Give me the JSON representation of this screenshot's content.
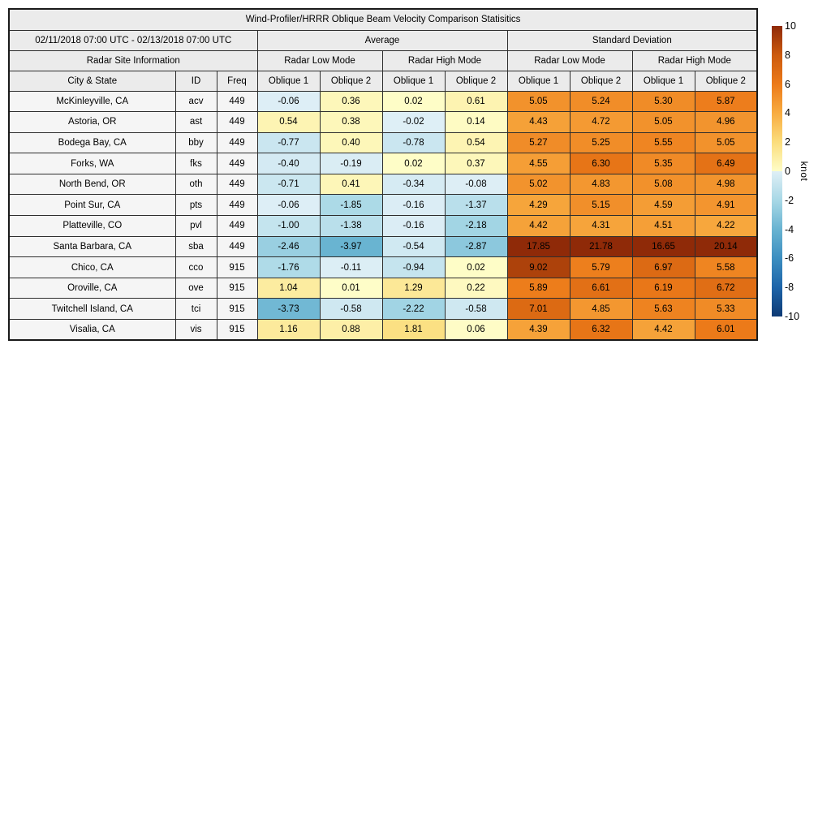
{
  "chart_data": {
    "type": "heatmap",
    "header": {
      "title": "Wind-Profiler/HRRR Oblique Beam Velocity Comparison Statisitics",
      "date_range": "02/11/2018 07:00 UTC - 02/13/2018 07:00 UTC",
      "group_average": "Average",
      "group_std": "Standard Deviation",
      "site_info": "Radar Site Information",
      "mode_labels": [
        "Radar Low Mode",
        "Radar High Mode",
        "Radar Low Mode",
        "Radar High Mode"
      ],
      "col_city": "City & State",
      "col_id": "ID",
      "col_freq": "Freq",
      "oblique_labels": [
        "Oblique 1",
        "Oblique 2",
        "Oblique 1",
        "Oblique 2",
        "Oblique 1",
        "Oblique 2",
        "Oblique 1",
        "Oblique 2"
      ]
    },
    "rows": [
      {
        "city": "McKinleyville, CA",
        "id": "acv",
        "freq": "449",
        "values": [
          -0.06,
          0.36,
          0.02,
          0.61,
          5.05,
          5.24,
          5.3,
          5.87
        ]
      },
      {
        "city": "Astoria, OR",
        "id": "ast",
        "freq": "449",
        "values": [
          0.54,
          0.38,
          -0.02,
          0.14,
          4.43,
          4.72,
          5.05,
          4.96
        ]
      },
      {
        "city": "Bodega Bay, CA",
        "id": "bby",
        "freq": "449",
        "values": [
          -0.77,
          0.4,
          -0.78,
          0.54,
          5.27,
          5.25,
          5.55,
          5.05
        ]
      },
      {
        "city": "Forks, WA",
        "id": "fks",
        "freq": "449",
        "values": [
          -0.4,
          -0.19,
          0.02,
          0.37,
          4.55,
          6.3,
          5.35,
          6.49
        ]
      },
      {
        "city": "North Bend, OR",
        "id": "oth",
        "freq": "449",
        "values": [
          -0.71,
          0.41,
          -0.34,
          -0.08,
          5.02,
          4.83,
          5.08,
          4.98
        ]
      },
      {
        "city": "Point Sur, CA",
        "id": "pts",
        "freq": "449",
        "values": [
          -0.06,
          -1.85,
          -0.16,
          -1.37,
          4.29,
          5.15,
          4.59,
          4.91
        ]
      },
      {
        "city": "Platteville, CO",
        "id": "pvl",
        "freq": "449",
        "values": [
          -1.0,
          -1.38,
          -0.16,
          -2.18,
          4.42,
          4.31,
          4.51,
          4.22
        ]
      },
      {
        "city": "Santa Barbara, CA",
        "id": "sba",
        "freq": "449",
        "values": [
          -2.46,
          -3.97,
          -0.54,
          -2.87,
          17.85,
          21.78,
          16.65,
          20.14
        ]
      },
      {
        "city": "Chico, CA",
        "id": "cco",
        "freq": "915",
        "values": [
          -1.76,
          -0.11,
          -0.94,
          0.02,
          9.02,
          5.79,
          6.97,
          5.58
        ]
      },
      {
        "city": "Oroville, CA",
        "id": "ove",
        "freq": "915",
        "values": [
          1.04,
          0.01,
          1.29,
          0.22,
          5.89,
          6.61,
          6.19,
          6.72
        ]
      },
      {
        "city": "Twitchell Island, CA",
        "id": "tci",
        "freq": "915",
        "values": [
          -3.73,
          -0.58,
          -2.22,
          -0.58,
          7.01,
          4.85,
          5.63,
          5.33
        ]
      },
      {
        "city": "Visalia, CA",
        "id": "vis",
        "freq": "915",
        "values": [
          1.16,
          0.88,
          1.81,
          0.06,
          4.39,
          6.32,
          4.42,
          6.01
        ]
      }
    ],
    "colorbar": {
      "unit_label": "knot",
      "min": -10,
      "max": 10,
      "ticks": [
        10,
        8,
        6,
        4,
        2,
        0,
        -2,
        -4,
        -6,
        -8,
        -10
      ],
      "anchors": [
        {
          "v": -10,
          "c": "#0e3a74"
        },
        {
          "v": -8,
          "c": "#1d64a9"
        },
        {
          "v": -6,
          "c": "#3c8ec0"
        },
        {
          "v": -4,
          "c": "#68b3d1"
        },
        {
          "v": -2,
          "c": "#a8d8e6"
        },
        {
          "v": -0.001,
          "c": "#dfeff6"
        },
        {
          "v": 0,
          "c": "#fefdc8"
        },
        {
          "v": 2,
          "c": "#fbdd7c"
        },
        {
          "v": 4,
          "c": "#f8ac41"
        },
        {
          "v": 6,
          "c": "#ec7a19"
        },
        {
          "v": 8,
          "c": "#cc5a0e"
        },
        {
          "v": 10,
          "c": "#8f2a08"
        }
      ]
    },
    "colors": {
      "header_bg": "#ebebeb",
      "label_bg": "#f5f5f5",
      "border": "#2e2e2e",
      "background": "#ffffff"
    }
  }
}
